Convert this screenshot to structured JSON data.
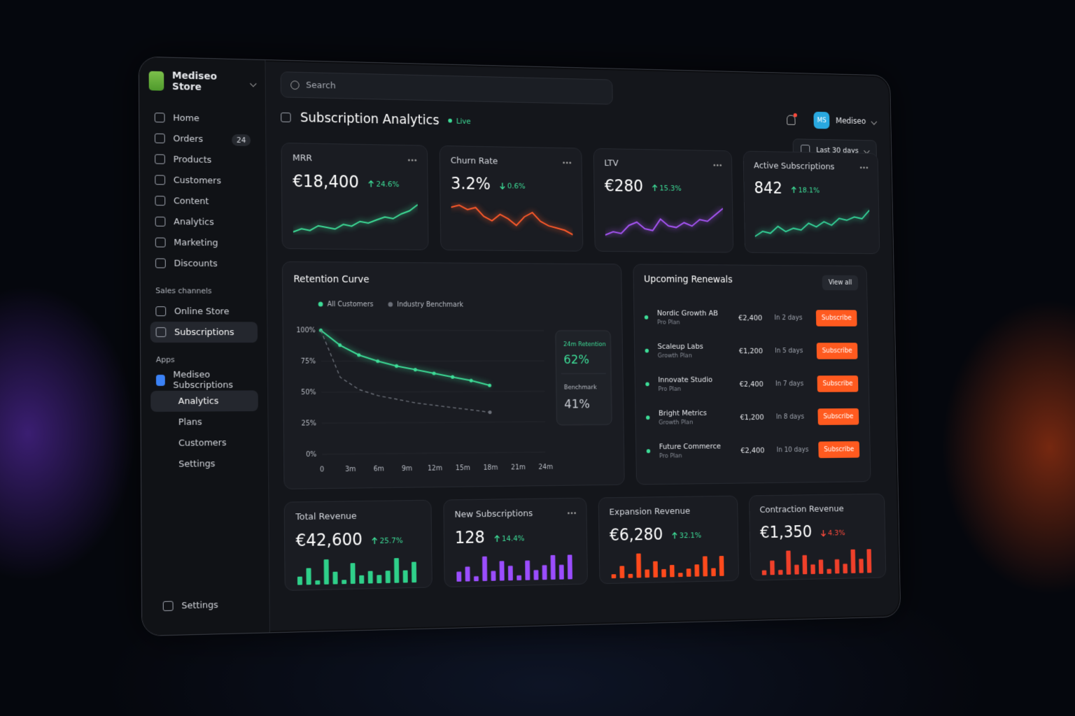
{
  "sidebar": {
    "store_name": "Mediseo Store",
    "nav": [
      {
        "label": "Home"
      },
      {
        "label": "Orders",
        "badge": "24"
      },
      {
        "label": "Products"
      },
      {
        "label": "Customers"
      },
      {
        "label": "Content"
      },
      {
        "label": "Analytics"
      },
      {
        "label": "Marketing"
      },
      {
        "label": "Discounts"
      }
    ],
    "sales_channels_title": "Sales channels",
    "channels": [
      "Online Store",
      "Subscriptions"
    ],
    "apps_title": "Apps",
    "app_name": "Mediseo Subscriptions",
    "app_nav": [
      "Analytics",
      "Plans",
      "Customers",
      "Settings"
    ],
    "settings": "Settings"
  },
  "header": {
    "search": "Search",
    "title": "Subscription Analytics",
    "status": "Live",
    "user_initials": "MS",
    "user_name": "Mediseo",
    "date_range": "Last 30 days"
  },
  "kpis": [
    {
      "label": "MRR",
      "value": "€18,400",
      "change": "24.6%",
      "direction": "up",
      "change_color": "#3ddc97",
      "color": "#3ddc97",
      "trend": [
        10,
        12,
        11,
        14,
        13,
        12,
        15,
        14,
        17,
        16,
        18,
        20,
        19,
        22,
        24,
        28
      ]
    },
    {
      "label": "Churn Rate",
      "value": "3.2%",
      "change": "0.6%",
      "direction": "down",
      "change_color": "#3ddc97",
      "color": "#ff5a2a",
      "trend": [
        26,
        27,
        25,
        26,
        22,
        20,
        23,
        21,
        18,
        22,
        24,
        20,
        18,
        17,
        16,
        14
      ]
    },
    {
      "label": "LTV",
      "value": "€280",
      "change": "15.3%",
      "direction": "up",
      "change_color": "#3ddc97",
      "color": "#a855f7",
      "trend": [
        10,
        12,
        11,
        16,
        18,
        14,
        13,
        20,
        16,
        15,
        18,
        16,
        20,
        19,
        23,
        27
      ]
    },
    {
      "label": "Active Subscriptions",
      "value": "842",
      "change": "18.1%",
      "direction": "up",
      "change_color": "#3ddc97",
      "color": "#34d399",
      "trend": [
        10,
        13,
        12,
        16,
        13,
        15,
        14,
        18,
        16,
        19,
        17,
        21,
        20,
        22,
        21,
        26
      ]
    }
  ],
  "retention": {
    "title": "Retention Curve",
    "type": "line",
    "x": [
      0,
      2,
      4,
      6,
      8,
      10,
      12,
      14,
      16,
      18
    ],
    "series": [
      {
        "name": "All Customers",
        "color": "#3ddc97",
        "values": [
          100,
          88,
          80,
          75,
          71,
          68,
          65,
          62,
          59,
          55
        ]
      },
      {
        "name": "Industry Benchmark",
        "color": "#6b6f78",
        "values": [
          100,
          62,
          52,
          47,
          44,
          41,
          39,
          37,
          35,
          33
        ]
      }
    ],
    "xlim": [
      0,
      24
    ],
    "xticks": [
      0,
      {
        "value": 3,
        "label": "3m"
      },
      {
        "value": 6,
        "label": "6m"
      },
      {
        "value": 9,
        "label": "9m"
      },
      {
        "value": 12,
        "label": "12m"
      },
      {
        "value": 15,
        "label": "15m"
      },
      {
        "value": 18,
        "label": "18m"
      },
      {
        "value": 21,
        "label": "21m"
      },
      {
        "value": 24,
        "label": "24m"
      }
    ],
    "ylim": [
      0,
      100
    ],
    "yticks": [
      {
        "value": 0,
        "label": "0%"
      },
      {
        "value": 25,
        "label": "25%"
      },
      {
        "value": 50,
        "label": "50%"
      },
      {
        "value": 75,
        "label": "75%"
      },
      {
        "value": 100,
        "label": "100%"
      }
    ],
    "callout": {
      "retention_label": "24m Retention",
      "retention_value": "62%",
      "benchmark_label": "Benchmark",
      "benchmark_value": "41%"
    }
  },
  "renewals": {
    "title": "Upcoming Renewals",
    "view_all": "View all",
    "rows": [
      {
        "name": "Nordic Growth AB",
        "plan": "Pro Plan",
        "amount": "€2,400",
        "due": "In 2 days",
        "action": "Subscribe"
      },
      {
        "name": "Scaleup Labs",
        "plan": "Growth Plan",
        "amount": "€1,200",
        "due": "In 5 days",
        "action": "Subscribe"
      },
      {
        "name": "Innovate Studio",
        "plan": "Pro Plan",
        "amount": "€2,400",
        "due": "In 7 days",
        "action": "Subscribe"
      },
      {
        "name": "Bright Metrics",
        "plan": "Growth Plan",
        "amount": "€1,200",
        "due": "In 8 days",
        "action": "Subscribe"
      },
      {
        "name": "Future Commerce",
        "plan": "Pro Plan",
        "amount": "€2,400",
        "due": "In 10 days",
        "action": "Subscribe"
      }
    ]
  },
  "summary": [
    {
      "label": "Total Revenue",
      "value": "€42,600",
      "change": "25.7%",
      "direction": "up",
      "change_color": "#3ddc97",
      "color": "#2fd08a",
      "bars": [
        2,
        4,
        1,
        6,
        3,
        1,
        5,
        2,
        3,
        2,
        3,
        6,
        3,
        5
      ]
    },
    {
      "label": "New Subscriptions",
      "value": "128",
      "change": "14.4%",
      "direction": "up",
      "change_color": "#3ddc97",
      "color": "#9b4dff",
      "bars": [
        2,
        3,
        1,
        5,
        2,
        4,
        3,
        1,
        4,
        2,
        3,
        5,
        3,
        5
      ]
    },
    {
      "label": "Expansion Revenue",
      "value": "€6,280",
      "change": "32.1%",
      "direction": "up",
      "change_color": "#3ddc97",
      "color": "#ff4a1c",
      "bars": [
        1,
        3,
        1,
        6,
        2,
        4,
        2,
        3,
        1,
        2,
        3,
        5,
        2,
        5
      ]
    },
    {
      "label": "Contraction Revenue",
      "value": "€1,350",
      "change": "4.3%",
      "direction": "down",
      "change_color": "#ff4a3c",
      "color": "#f0402a",
      "bars": [
        1,
        3,
        1,
        5,
        2,
        4,
        2,
        3,
        1,
        3,
        2,
        5,
        3,
        5
      ]
    }
  ]
}
